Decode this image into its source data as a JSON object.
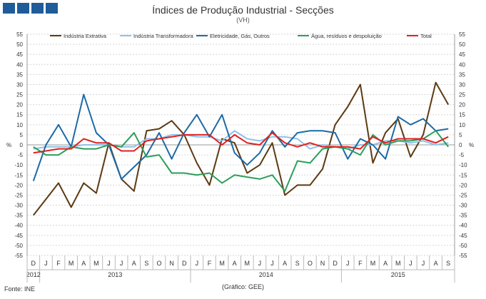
{
  "header": {
    "logo_icon": "ine-logo-icon",
    "title": "Índices de Produção Industrial - Secções",
    "subtitle": "(VH)"
  },
  "footer": {
    "source": "Fonte: INE",
    "credit": "(Gráfico: GEE)"
  },
  "chart_data": {
    "type": "line",
    "title": "Índices de Produção Industrial - Secções",
    "subtitle": "(VH)",
    "ylabel": "%",
    "ylabel_right": "%",
    "ylim": [
      -55,
      55
    ],
    "yticks": [
      -55,
      -50,
      -45,
      -40,
      -35,
      -30,
      -25,
      -20,
      -15,
      -10,
      -5,
      0,
      5,
      10,
      15,
      20,
      25,
      30,
      35,
      40,
      45,
      50,
      55
    ],
    "grid": true,
    "legend": "top",
    "month_labels": [
      "D",
      "J",
      "F",
      "M",
      "A",
      "M",
      "J",
      "J",
      "A",
      "S",
      "O",
      "N",
      "D",
      "J",
      "F",
      "M",
      "A",
      "M",
      "J",
      "J",
      "A",
      "S",
      "O",
      "N",
      "D",
      "J",
      "F",
      "M",
      "A",
      "M",
      "J",
      "J",
      "A",
      "S"
    ],
    "year_labels": [
      {
        "label": "2012",
        "start": 0,
        "end": 0
      },
      {
        "label": "2013",
        "start": 1,
        "end": 12
      },
      {
        "label": "2014",
        "start": 13,
        "end": 24
      },
      {
        "label": "2015",
        "start": 25,
        "end": 33
      }
    ],
    "series": [
      {
        "name": "Indústria Extrativa",
        "color": "#5c3a12",
        "values": [
          -35,
          -27,
          -19,
          -31,
          -19,
          -24,
          1,
          -17,
          -23,
          7,
          8,
          12,
          5,
          -9,
          -20,
          3,
          1,
          -14,
          -10,
          1,
          -25,
          -20,
          -20,
          -12,
          10,
          19,
          30,
          -9,
          6,
          13,
          -6,
          5,
          31,
          20
        ]
      },
      {
        "name": "Indústria Transformadora",
        "color": "#8fc1e8",
        "values": [
          -2,
          -1,
          -1,
          -1,
          0,
          0,
          0,
          -1,
          -1,
          3,
          3,
          5,
          5,
          4,
          4,
          2,
          7,
          3,
          2,
          4,
          4,
          3,
          -2,
          0,
          -1,
          -2,
          0,
          0,
          2,
          2,
          1,
          2,
          0,
          1
        ]
      },
      {
        "name": "Eletricidade, Gás, Outros",
        "color": "#1c6aa6",
        "values": [
          -18,
          0,
          10,
          -1,
          25,
          6,
          0,
          -17,
          -11,
          -5,
          6,
          -7,
          6,
          15,
          4,
          15,
          -4,
          -10,
          -4,
          7,
          -1,
          6,
          7,
          7,
          6,
          -7,
          3,
          0,
          -7,
          14,
          10,
          13,
          7,
          8
        ]
      },
      {
        "name": "Água, resíduos e despoluição",
        "color": "#2e9e5c",
        "values": [
          -1,
          -5,
          -5,
          -1,
          -2,
          -2,
          0,
          -1,
          6,
          -6,
          -5,
          -14,
          -14,
          -15,
          -14,
          -19,
          -15,
          -16,
          -17,
          -15,
          -23,
          -8,
          -9,
          -2,
          -1,
          -2,
          -5,
          5,
          0,
          2,
          2,
          3,
          7,
          -1
        ]
      },
      {
        "name": "Total",
        "color": "#e02020",
        "values": [
          -4,
          -3,
          -2,
          -2,
          3,
          1,
          1,
          -3,
          -3,
          2,
          3,
          4,
          5,
          5,
          5,
          0,
          5,
          1,
          0,
          6,
          1,
          -1,
          1,
          -1,
          -1,
          -1,
          -2,
          4,
          1,
          3,
          3,
          3,
          1,
          4
        ]
      }
    ]
  }
}
